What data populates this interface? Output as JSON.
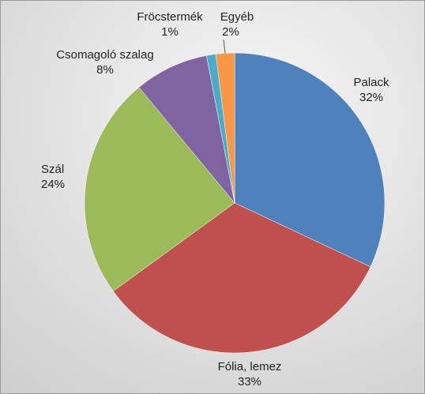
{
  "chart_data": {
    "type": "pie",
    "categories": [
      "Palack",
      "Fólia, lemez",
      "Szál",
      "Csomagoló szalag",
      "Fröcstermék",
      "Egyéb"
    ],
    "values": [
      32,
      33,
      24,
      8,
      1,
      2
    ],
    "value_labels": [
      "32%",
      "33%",
      "24%",
      "8%",
      "1%",
      "2%"
    ],
    "colors": [
      "#4f81bd",
      "#c0504d",
      "#9bbb59",
      "#8064a2",
      "#4bacc6",
      "#f79646"
    ]
  }
}
